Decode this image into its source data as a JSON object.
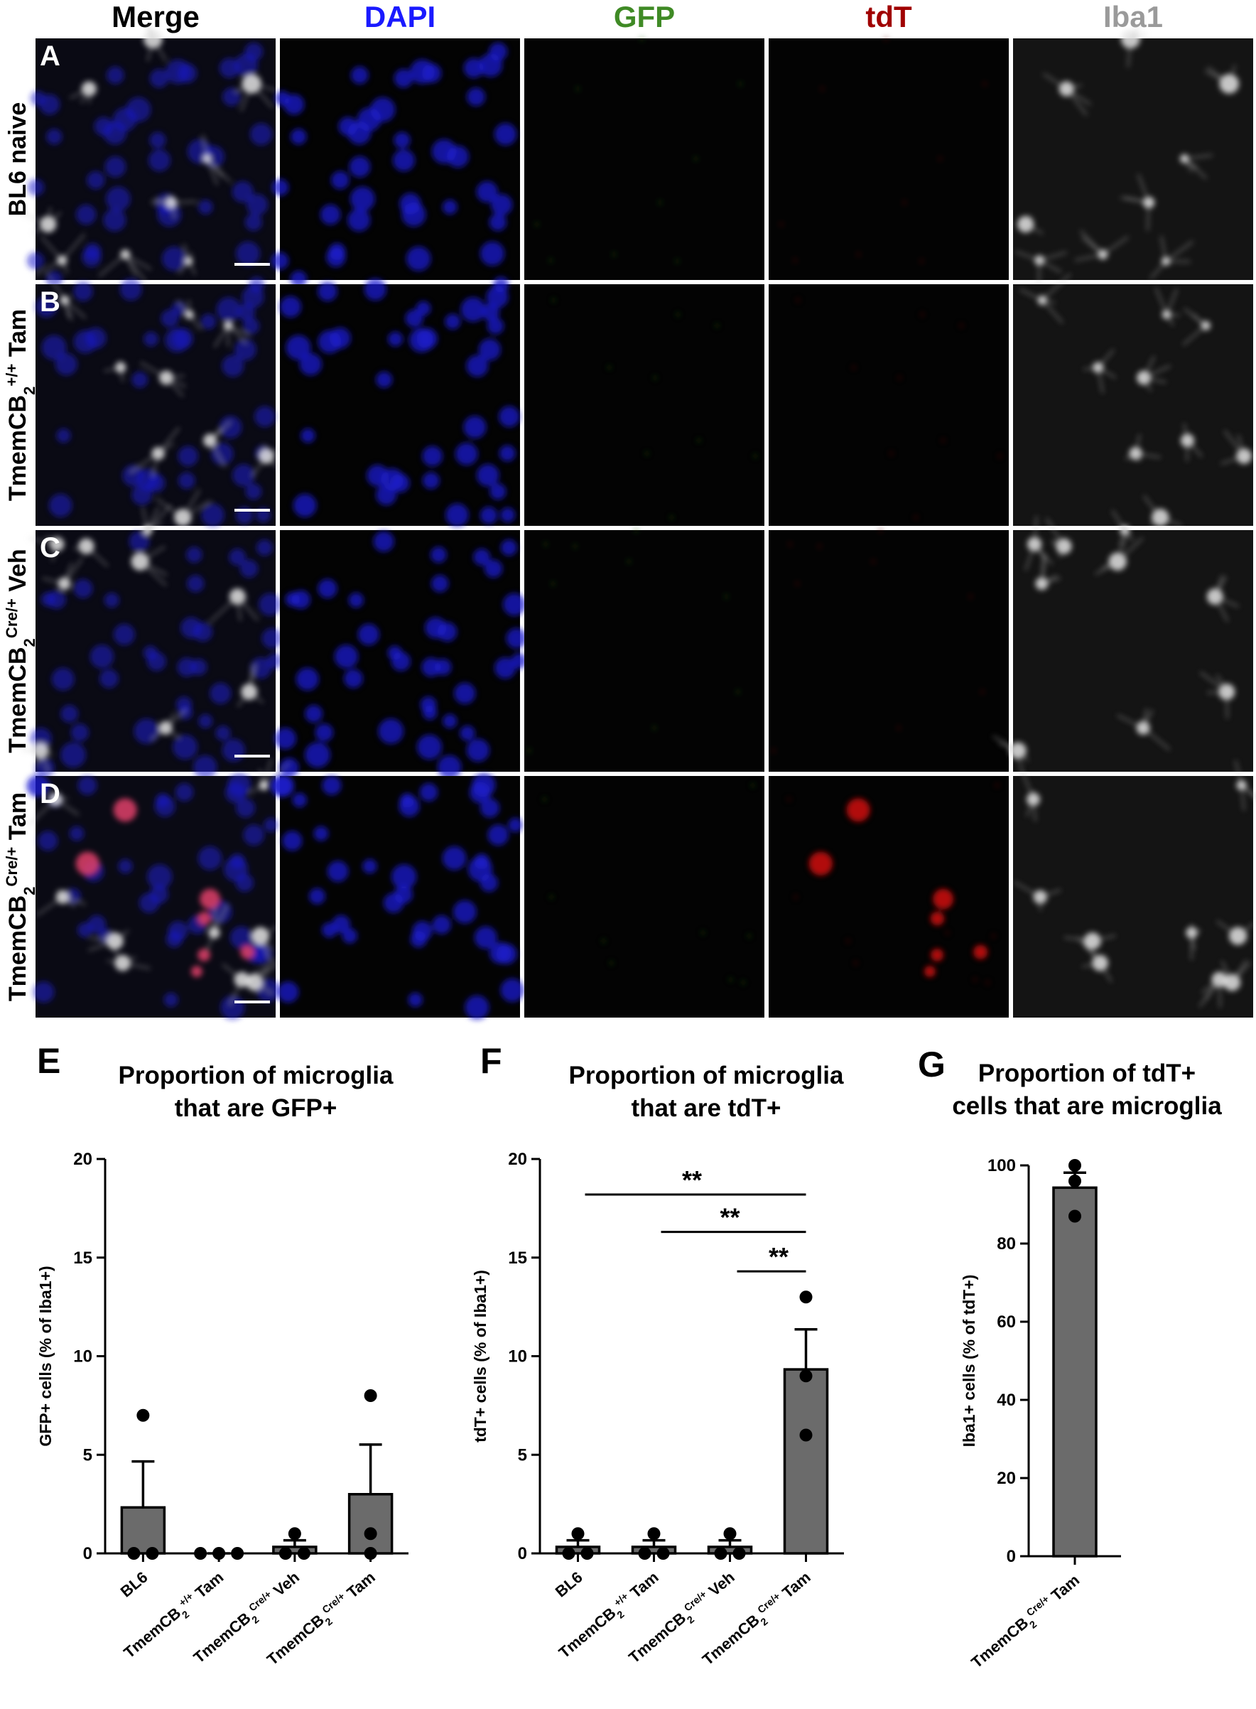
{
  "figure": {
    "columns": [
      "Merge",
      "DAPI",
      "GFP",
      "tdT",
      "Iba1"
    ],
    "rows": [
      {
        "letter": "A",
        "label": {
          "text": "BL6 naive"
        }
      },
      {
        "letter": "B",
        "label": {
          "text": "TmemCB",
          "sub": "2",
          "sup": "+/+",
          "suffix": " Tam"
        }
      },
      {
        "letter": "C",
        "label": {
          "text": "TmemCB",
          "sub": "2",
          "sup": "Cre/+",
          "suffix": " Veh"
        }
      },
      {
        "letter": "D",
        "label": {
          "text": "TmemCB",
          "sub": "2",
          "sup": "Cre/+",
          "suffix": " Tam"
        }
      }
    ]
  },
  "chart_data": [
    {
      "type": "bar",
      "panel": "E",
      "title": [
        "Proportion of microglia",
        "that are GFP+"
      ],
      "ylabel": "GFP+ cells (% of Iba1+)",
      "categories": [
        {
          "text": "BL6"
        },
        {
          "text": "TmemCB",
          "sub": "2",
          "sup": "+/+",
          "suffix": " Tam"
        },
        {
          "text": "TmemCB",
          "sub": "2",
          "sup": "Cre/+",
          "suffix": " Veh"
        },
        {
          "text": "TmemCB",
          "sub": "2",
          "sup": "Cre/+",
          "suffix": " Tam"
        }
      ],
      "values": [
        2.33,
        0,
        0.33,
        3
      ],
      "errors": [
        2.33,
        0,
        0.33,
        2.52
      ],
      "points": [
        [
          7,
          0,
          0
        ],
        [
          0,
          0,
          0
        ],
        [
          1,
          0,
          0
        ],
        [
          8,
          1,
          0
        ]
      ],
      "color": "#6b6b6b",
      "ylim": [
        0,
        20
      ],
      "yticks": [
        0,
        5,
        10,
        15,
        20
      ]
    },
    {
      "type": "bar",
      "panel": "F",
      "title": [
        "Proportion of microglia",
        "that are tdT+"
      ],
      "ylabel": "tdT+ cells (% of Iba1+)",
      "categories": [
        {
          "text": "BL6"
        },
        {
          "text": "TmemCB",
          "sub": "2",
          "sup": "+/+",
          "suffix": " Tam"
        },
        {
          "text": "TmemCB",
          "sub": "2",
          "sup": "Cre/+",
          "suffix": " Veh"
        },
        {
          "text": "TmemCB",
          "sub": "2",
          "sup": "Cre/+",
          "suffix": " Tam"
        }
      ],
      "values": [
        0.33,
        0.33,
        0.33,
        9.33
      ],
      "errors": [
        0.33,
        0.33,
        0.33,
        2.03
      ],
      "points": [
        [
          1,
          0,
          0
        ],
        [
          1,
          0,
          0
        ],
        [
          1,
          0,
          0
        ],
        [
          13,
          9,
          6
        ]
      ],
      "comparisons": [
        {
          "from": 0,
          "to": 3,
          "y": 18.2,
          "label": "**"
        },
        {
          "from": 1,
          "to": 3,
          "y": 16.3,
          "label": "**"
        },
        {
          "from": 2,
          "to": 3,
          "y": 14.3,
          "label": "**"
        }
      ],
      "color": "#6b6b6b",
      "ylim": [
        0,
        20
      ],
      "yticks": [
        0,
        5,
        10,
        15,
        20
      ]
    },
    {
      "type": "bar",
      "panel": "G",
      "title": [
        "Proportion of tdT+",
        "cells that are microglia"
      ],
      "ylabel": "Iba1+ cells (% of tdT+)",
      "categories": [
        {
          "text": "TmemCB",
          "sub": "2",
          "sup": "Cre/+",
          "suffix": " Tam"
        }
      ],
      "values": [
        94.3
      ],
      "errors": [
        3.84
      ],
      "points": [
        [
          100,
          96,
          87
        ]
      ],
      "color": "#6b6b6b",
      "ylim": [
        0,
        100
      ],
      "yticks": [
        0,
        20,
        40,
        60,
        80,
        100
      ]
    }
  ]
}
